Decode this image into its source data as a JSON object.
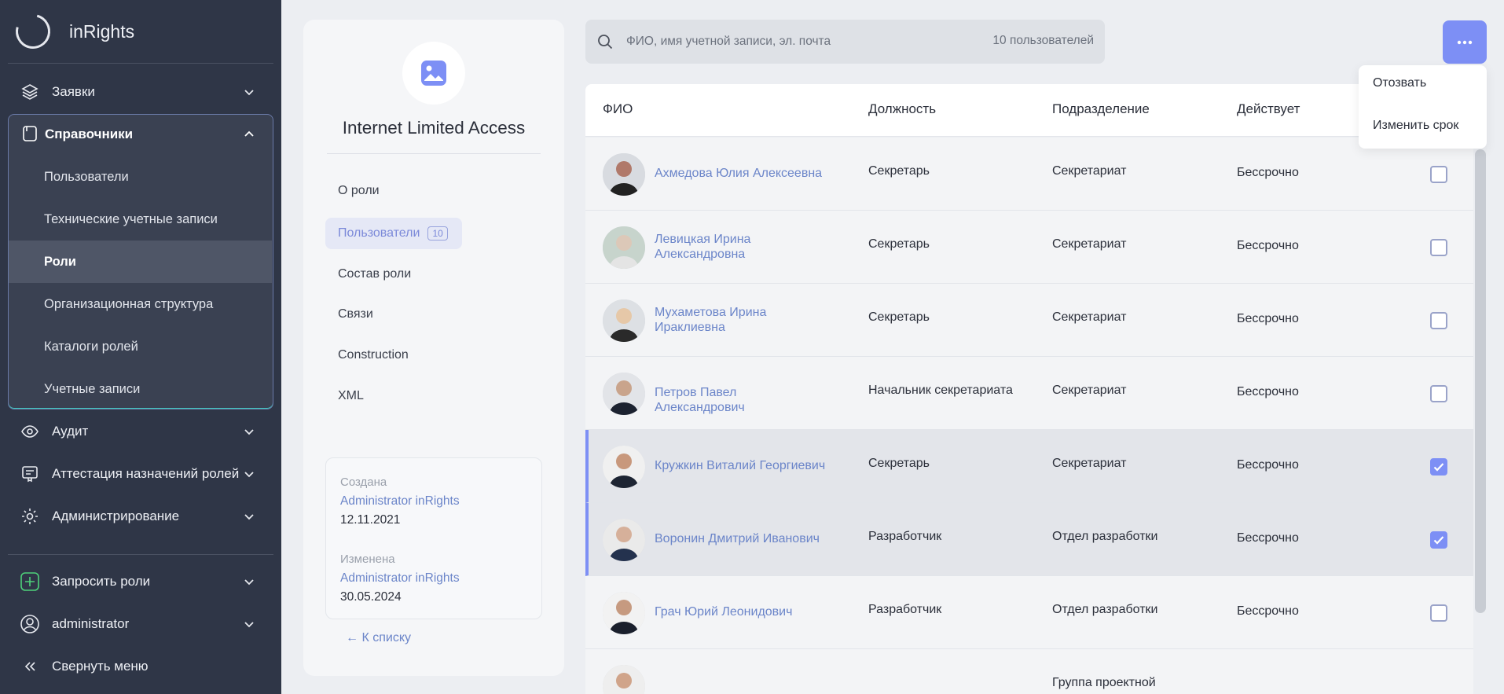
{
  "app": {
    "name": "inRights"
  },
  "sidebar": {
    "zayavki": "Заявки",
    "spravochniki": "Справочники",
    "sub_items": [
      "Пользователи",
      "Технические учетные записи",
      "Роли",
      "Организационная структура",
      "Каталоги ролей",
      "Учетные записи"
    ],
    "audit": "Аудит",
    "attestatsiya": "Аттестация назначений ролей",
    "admin": "Администрирование",
    "request_roles": "Запросить роли",
    "user": "administrator",
    "collapse": "Свернуть меню"
  },
  "role": {
    "title": "Internet Limited Access",
    "menu": {
      "about": "О роли",
      "users": "Пользователи",
      "users_count": "10",
      "composition": "Состав роли",
      "links": "Связи",
      "construction": "Construction",
      "xml": "XML"
    },
    "created_label": "Создана",
    "created_by": "Administrator inRights",
    "created_date": "12.11.2021",
    "modified_label": "Изменена",
    "modified_by": "Administrator inRights",
    "modified_date": "30.05.2024",
    "back": "← К списку"
  },
  "search": {
    "placeholder": "ФИО, имя учетной записи, эл. почта",
    "count": "10 пользователей"
  },
  "dropdown": {
    "revoke": "Отозвать",
    "change_term": "Изменить срок"
  },
  "table": {
    "headers": {
      "fio": "ФИО",
      "position": "Должность",
      "department": "Подразделение",
      "valid": "Действует"
    },
    "rows": [
      {
        "name": "Ахмедова Юлия Алексеевна",
        "position": "Секретарь",
        "department": "Секретариат",
        "valid": "Бессрочно",
        "checked": false
      },
      {
        "name": "Левицкая Ирина Александровна",
        "position": "Секретарь",
        "department": "Секретариат",
        "valid": "Бессрочно",
        "checked": false
      },
      {
        "name": "Мухаметова Ирина Ираклиевна",
        "position": "Секретарь",
        "department": "Секретариат",
        "valid": "Бессрочно",
        "checked": false
      },
      {
        "name": "Петров Павел Александрович",
        "position": "Начальник секретариата",
        "department": "Секретариат",
        "valid": "Бессрочно",
        "checked": false
      },
      {
        "name": "Кружкин Виталий Георгиевич",
        "position": "Секретарь",
        "department": "Секретариат",
        "valid": "Бессрочно",
        "checked": true
      },
      {
        "name": "Воронин Дмитрий Иванович",
        "position": "Разработчик",
        "department": "Отдел разработки",
        "valid": "Бессрочно",
        "checked": true
      },
      {
        "name": "Грач Юрий Леонидович",
        "position": "Разработчик",
        "department": "Отдел разработки",
        "valid": "Бессрочно",
        "checked": false
      },
      {
        "name": "",
        "position": "",
        "department": "Группа проектной",
        "valid": "",
        "checked": false
      }
    ]
  },
  "colors": {
    "accent": "#7d8ff5",
    "sidebar": "#2f3647",
    "link": "#6b85c9"
  }
}
